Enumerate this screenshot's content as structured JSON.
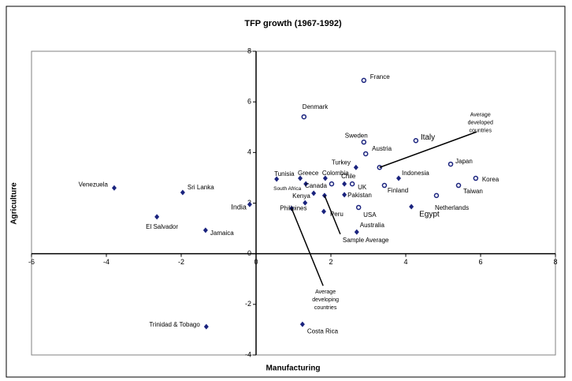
{
  "chart_data": {
    "type": "scatter",
    "title": "TFP growth (1967-1992)",
    "x_label": "Manufacturing",
    "y_label": "Agriculture",
    "xlim": [
      -6,
      8
    ],
    "ylim": [
      -4,
      8
    ],
    "xticks": [
      -6,
      -4,
      -2,
      0,
      2,
      4,
      6,
      8
    ],
    "yticks": [
      -4,
      -2,
      0,
      2,
      4,
      6,
      8
    ],
    "series": [
      {
        "marker": "diamond",
        "color": "#1a237e",
        "labels": [
          "Venezuela",
          "Sri Lanka",
          "El Salvador",
          "Jamaica",
          "India",
          "Trinidad & Tobago",
          "Costa Rica",
          "Average developing countries",
          "Philipines",
          "Peru",
          "Sample Average",
          "Australia",
          "Egypt",
          "Kenya",
          "Pakistan",
          "Chile",
          "Colombia",
          "Greece",
          "Tunisia",
          "South Africa",
          "Turkey",
          "Indonesia"
        ],
        "x": [
          -3.79,
          -1.96,
          -2.65,
          -1.35,
          -0.17,
          -1.33,
          1.24,
          0.95,
          1.31,
          1.81,
          1.83,
          2.69,
          4.15,
          1.54,
          2.36,
          2.36,
          1.85,
          1.18,
          0.55,
          1.33,
          2.67,
          3.81
        ],
        "values": [
          2.6,
          2.42,
          1.46,
          0.93,
          1.95,
          -2.88,
          -2.79,
          1.79,
          2.01,
          1.67,
          2.3,
          0.86,
          1.86,
          2.39,
          2.33,
          2.76,
          2.98,
          2.98,
          2.95,
          2.76,
          3.41,
          2.98
        ]
      },
      {
        "marker": "circle",
        "color": "#1a237e",
        "labels": [
          "France",
          "Denmark",
          "Sweden",
          "Austria",
          "Italy",
          "Average developed countries",
          "Japan",
          "Korea",
          "Taiwan",
          "Netherlands",
          "Finland",
          "UK",
          "USA",
          "Canada"
        ],
        "x": [
          2.88,
          1.28,
          2.88,
          2.93,
          4.27,
          3.3,
          5.2,
          5.87,
          5.41,
          4.82,
          3.43,
          2.57,
          2.74,
          2.02
        ],
        "values": [
          6.85,
          5.41,
          4.41,
          3.95,
          4.47,
          3.41,
          3.54,
          2.98,
          2.7,
          2.3,
          2.7,
          2.76,
          1.83,
          2.76
        ]
      }
    ]
  }
}
